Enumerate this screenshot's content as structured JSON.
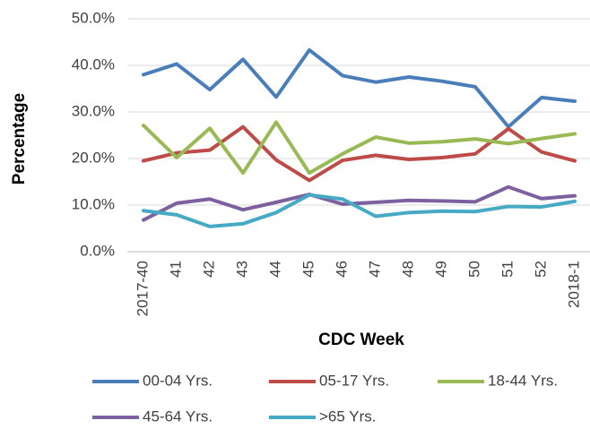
{
  "chart_data": {
    "type": "line",
    "xlabel": "CDC Week",
    "ylabel": "Percentage",
    "categories": [
      "2017-40",
      "41",
      "42",
      "43",
      "44",
      "45",
      "46",
      "47",
      "48",
      "49",
      "50",
      "51",
      "52",
      "2018-1"
    ],
    "series": [
      {
        "name": "00-04 Yrs.",
        "color": "#4a7ebb",
        "values": [
          38.0,
          40.3,
          34.8,
          41.3,
          33.2,
          43.3,
          37.8,
          36.4,
          37.5,
          36.6,
          35.4,
          26.8,
          33.1,
          32.3
        ]
      },
      {
        "name": "05-17 Yrs.",
        "color": "#be4b48",
        "values": [
          19.5,
          21.2,
          21.8,
          26.8,
          19.7,
          15.3,
          19.6,
          20.7,
          19.8,
          20.2,
          21.0,
          26.4,
          21.4,
          19.5
        ]
      },
      {
        "name": "18-44 Yrs.",
        "color": "#98b954",
        "values": [
          27.1,
          20.2,
          26.5,
          16.9,
          27.8,
          16.9,
          21.0,
          24.6,
          23.3,
          23.6,
          24.2,
          23.2,
          24.3,
          25.3
        ]
      },
      {
        "name": "45-64 Yrs.",
        "color": "#7d60a0",
        "values": [
          6.8,
          10.4,
          11.3,
          9.0,
          10.6,
          12.3,
          10.2,
          10.6,
          11.0,
          10.9,
          10.7,
          13.9,
          11.4,
          12.0
        ]
      },
      {
        "name": ">65 Yrs.",
        "color": "#46aac5",
        "values": [
          8.8,
          7.9,
          5.4,
          6.0,
          8.4,
          12.2,
          11.3,
          7.6,
          8.4,
          8.7,
          8.6,
          9.7,
          9.6,
          10.8
        ]
      }
    ],
    "ylim": [
      0,
      50
    ],
    "yticks": [
      {
        "value": 0,
        "label": "0.0%"
      },
      {
        "value": 10,
        "label": "10.0%"
      },
      {
        "value": 20,
        "label": "20.0%"
      },
      {
        "value": 30,
        "label": "30.0%"
      },
      {
        "value": 40,
        "label": "40.0%"
      },
      {
        "value": 50,
        "label": "50.0%"
      }
    ],
    "grid": true,
    "legend": "bottom"
  }
}
